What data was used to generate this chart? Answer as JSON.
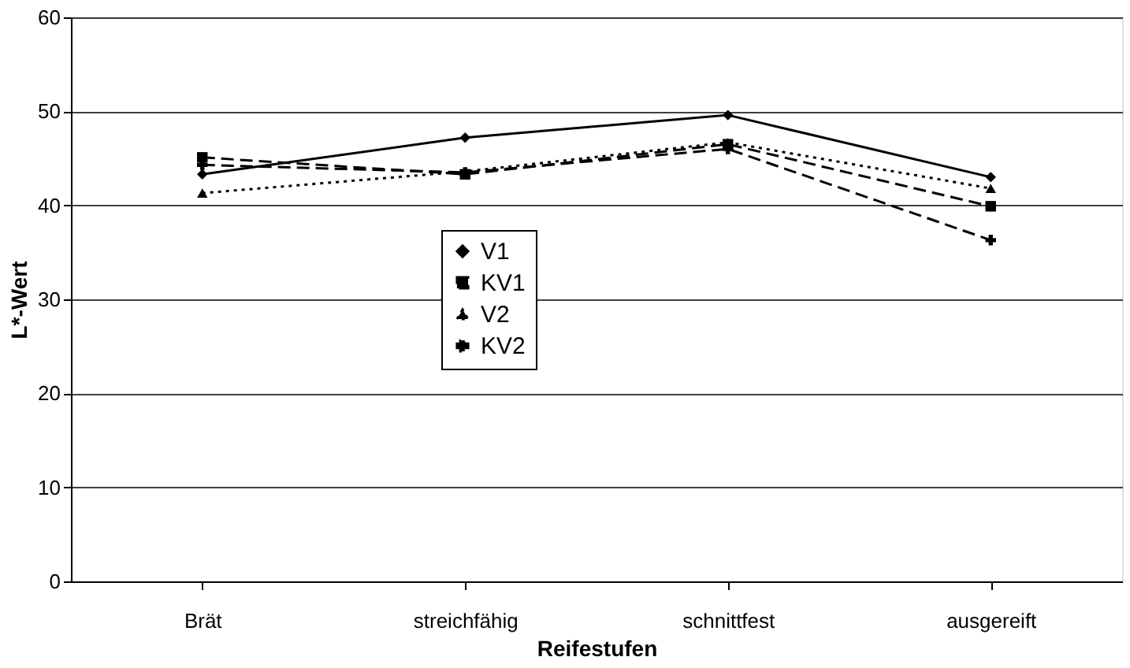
{
  "chart_data": {
    "type": "line",
    "xlabel": "Reifestufen",
    "ylabel": "L*-Wert",
    "categories": [
      "Brät",
      "streichfähig",
      "schnittfest",
      "ausgereift"
    ],
    "series": [
      {
        "name": "V1",
        "color": "#000000",
        "marker": "diamond",
        "line_style": "solid",
        "values": [
          43.3,
          47.2,
          49.6,
          43.0
        ]
      },
      {
        "name": "KV1",
        "color": "#000000",
        "marker": "square",
        "line_style": "dashed",
        "values": [
          45.1,
          43.3,
          46.5,
          39.9
        ]
      },
      {
        "name": "V2",
        "color": "#000000",
        "marker": "triangle",
        "line_style": "dotted",
        "values": [
          41.3,
          43.6,
          46.7,
          41.8
        ]
      },
      {
        "name": "KV2",
        "color": "#000000",
        "marker": "cross",
        "line_style": "dashed",
        "values": [
          44.3,
          43.5,
          46.0,
          36.3
        ]
      }
    ],
    "ylim": [
      0,
      60
    ],
    "yticks": [
      0,
      10,
      20,
      30,
      40,
      50,
      60
    ],
    "grid": "y",
    "legend": "center"
  }
}
